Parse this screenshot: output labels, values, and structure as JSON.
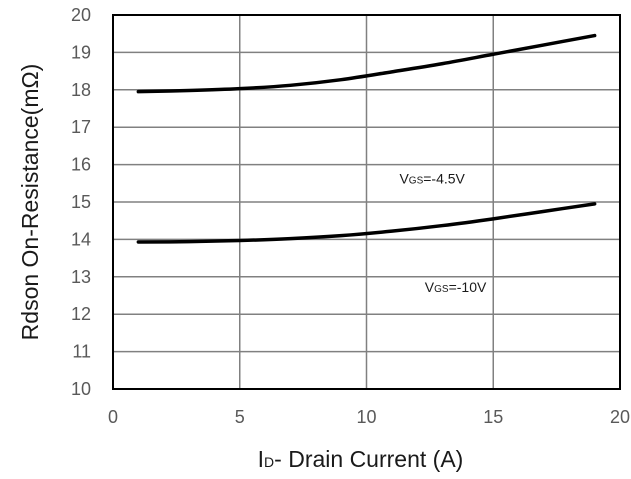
{
  "chart_data": {
    "type": "line",
    "xlabel": {
      "main": "I",
      "sub": "D",
      "rest": "- Drain Current (A)"
    },
    "ylabel": "Rdson On-Resistance(mΩ)",
    "xlim": [
      0,
      20
    ],
    "ylim": [
      10,
      20
    ],
    "xticks": [
      0,
      5,
      10,
      15,
      20
    ],
    "yticks": [
      10,
      11,
      12,
      13,
      14,
      15,
      16,
      17,
      18,
      19,
      20
    ],
    "grid": true,
    "series": [
      {
        "x": [
          1,
          3,
          5,
          7,
          9,
          11,
          13,
          15,
          17,
          19
        ],
        "y": [
          17.95,
          17.98,
          18.03,
          18.12,
          18.27,
          18.48,
          18.7,
          18.95,
          19.2,
          19.45
        ]
      },
      {
        "x": [
          1,
          3,
          5,
          7,
          9,
          11,
          13,
          15,
          17,
          19
        ],
        "y": [
          13.93,
          13.94,
          13.97,
          14.02,
          14.1,
          14.22,
          14.37,
          14.55,
          14.75,
          14.95
        ]
      }
    ],
    "annotations": [
      {
        "v": "V",
        "sub": "GS",
        "rest": "=-4.5V",
        "x": 11.3,
        "y": 15.5
      },
      {
        "v": "V",
        "sub": "GS",
        "rest": "=-10V",
        "x": 12.3,
        "y": 12.6
      }
    ]
  }
}
